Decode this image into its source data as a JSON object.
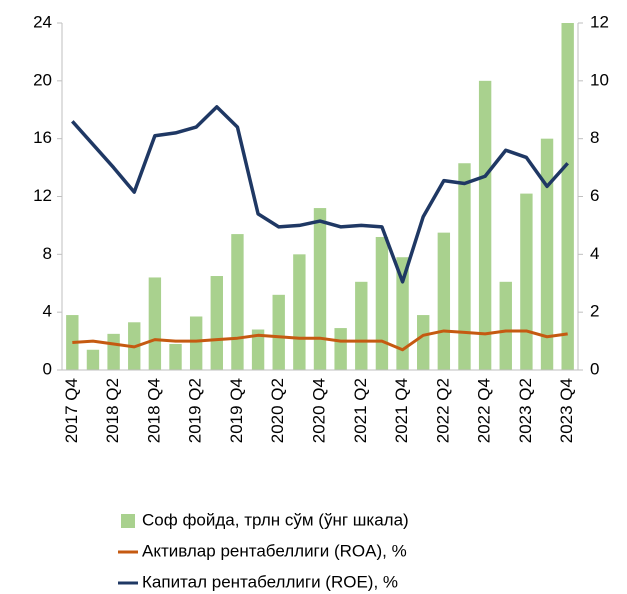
{
  "chart_data": {
    "type": "combo",
    "categories": [
      "2017 Q4",
      null,
      "2018 Q2",
      null,
      "2018 Q4",
      null,
      "2019 Q2",
      null,
      "2019 Q4",
      null,
      "2020 Q2",
      null,
      "2020 Q4",
      null,
      "2021 Q2",
      null,
      "2021 Q4",
      null,
      "2022 Q2",
      null,
      "2022 Q4",
      null,
      "2023 Q2",
      null,
      "2023 Q4"
    ],
    "series": [
      {
        "name": "Соф фойда, трлн сўм (ўнг шкала)",
        "type": "bar",
        "axis": "y2",
        "color": "#a9d18e",
        "values": [
          1.9,
          0.7,
          1.25,
          1.65,
          3.2,
          0.9,
          1.85,
          3.25,
          4.7,
          1.4,
          2.6,
          4.0,
          5.6,
          1.45,
          3.05,
          4.6,
          3.9,
          1.9,
          4.75,
          7.15,
          10.0,
          3.05,
          6.1,
          8.0,
          12.0
        ]
      },
      {
        "name": "Активлар рентабеллиги (ROA), %",
        "type": "line",
        "color": "#c55a11",
        "values": [
          1.9,
          2.0,
          1.8,
          1.6,
          2.1,
          2.0,
          2.0,
          2.1,
          2.2,
          2.4,
          2.3,
          2.2,
          2.2,
          2.0,
          2.0,
          2.0,
          1.4,
          2.4,
          2.7,
          2.6,
          2.5,
          2.7,
          2.7,
          2.3,
          2.5
        ]
      },
      {
        "name": "Капитал рентабеллиги (ROE), %",
        "type": "line",
        "color": "#1f3864",
        "values": [
          17.2,
          15.6,
          14.0,
          12.3,
          16.2,
          16.4,
          16.8,
          18.2,
          16.8,
          10.8,
          9.9,
          10.0,
          10.3,
          9.9,
          10.0,
          9.9,
          6.1,
          10.6,
          13.1,
          12.9,
          13.4,
          15.2,
          14.7,
          12.7,
          14.3
        ]
      }
    ],
    "ylim": [
      0,
      24
    ],
    "yticks": [
      0,
      4,
      8,
      12,
      16,
      20,
      24
    ],
    "y2lim": [
      0,
      12
    ],
    "y2ticks": [
      0,
      2,
      4,
      6,
      8,
      10,
      12
    ],
    "grid": false,
    "legend": "bottom"
  }
}
